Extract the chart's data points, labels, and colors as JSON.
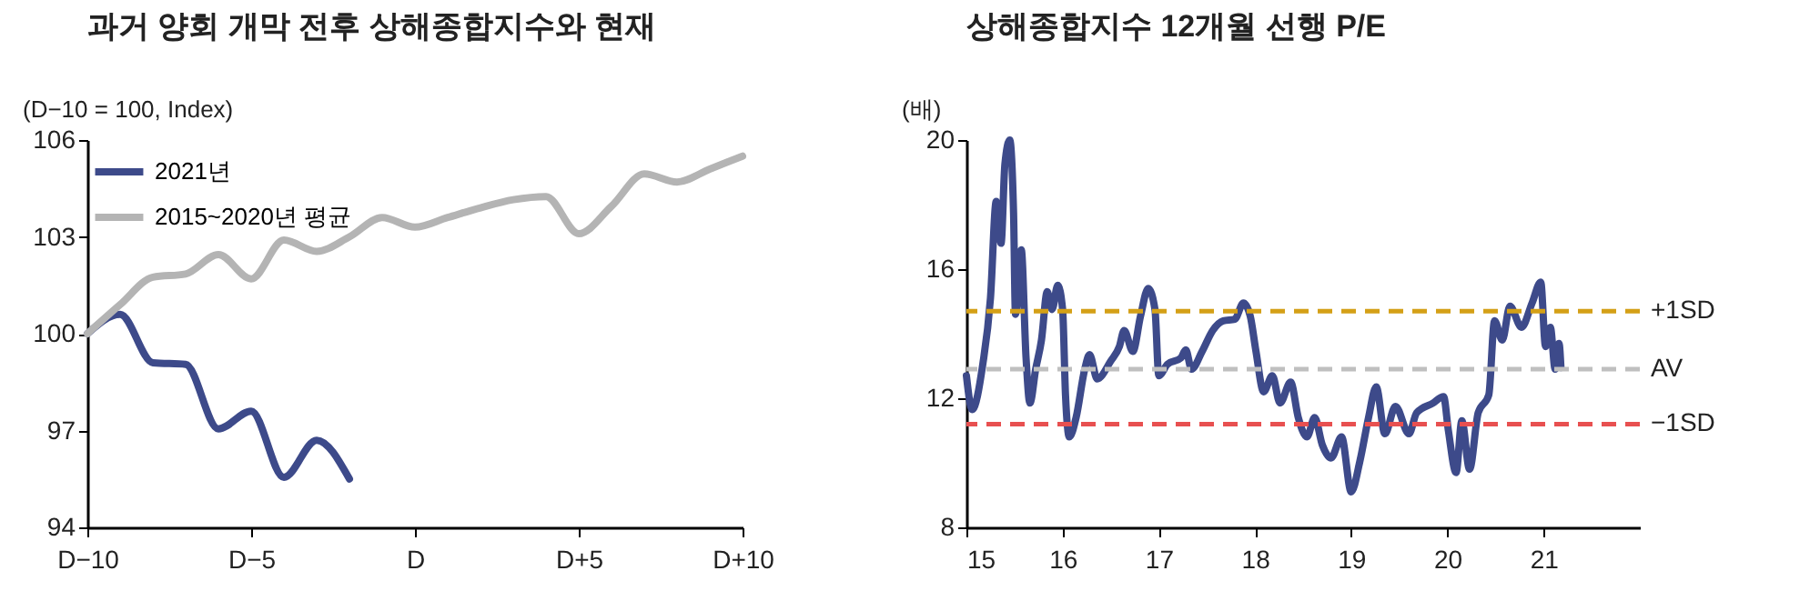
{
  "chart_data": [
    {
      "type": "line",
      "title": "과거 양회 개막 전후 상해종합지수와 현재",
      "ylabel": "(D−10 = 100, Index)",
      "categories": [
        "D−10",
        null,
        null,
        null,
        null,
        "D−5",
        null,
        null,
        null,
        null,
        "D",
        null,
        null,
        null,
        null,
        "D+5",
        null,
        null,
        null,
        null,
        "D+10"
      ],
      "ylim": [
        94,
        106
      ],
      "yticks": [
        94,
        97,
        100,
        103,
        106
      ],
      "grid": false,
      "legend": "top left",
      "marker": "none",
      "line_style": "solid",
      "series": [
        {
          "name": "2021년",
          "color": "#3d4a8a",
          "values": [
            100,
            100.6,
            99.1,
            99.05,
            97.05,
            97.6,
            95.55,
            96.7,
            95.5,
            null,
            null,
            null,
            null,
            null,
            null,
            null,
            null,
            null,
            null,
            null,
            null
          ]
        },
        {
          "name": "2015~2020년  평균",
          "color": "#b4b4b4",
          "values": [
            100,
            100.9,
            101.75,
            101.85,
            102.45,
            101.7,
            102.9,
            102.55,
            103.0,
            103.6,
            103.3,
            103.6,
            103.9,
            104.15,
            104.25,
            103.1,
            103.95,
            104.95,
            104.7,
            105.1,
            105.5
          ]
        }
      ]
    },
    {
      "type": "line",
      "title": "상해종합지수 12개월 선행 P/E",
      "ylabel": "(배)",
      "xlim": [
        15,
        22
      ],
      "xticks": [
        15,
        16,
        17,
        18,
        19,
        20,
        21
      ],
      "ylim": [
        8,
        20
      ],
      "yticks": [
        8,
        12,
        16,
        20
      ],
      "grid": false,
      "marker": "none",
      "line_style": "solid",
      "ref_lines": [
        {
          "axis": "y",
          "value": 14.7,
          "label": "+1SD",
          "color": "#d4a017",
          "line_style": "dashed"
        },
        {
          "axis": "y",
          "value": 12.9,
          "label": "AV",
          "color": "#bfbfbf",
          "line_style": "dashed"
        },
        {
          "axis": "y",
          "value": 11.2,
          "label": "−1SD",
          "color": "#e85050",
          "line_style": "dashed"
        }
      ],
      "series": [
        {
          "color": "#3d4a8a",
          "x": [
            15.0,
            15.06,
            15.17,
            15.25,
            15.31,
            15.36,
            15.4,
            15.45,
            15.49,
            15.51,
            15.57,
            15.62,
            15.66,
            15.72,
            15.78,
            15.84,
            15.89,
            15.95,
            16.0,
            16.03,
            16.07,
            16.14,
            16.23,
            16.28,
            16.36,
            16.5,
            16.59,
            16.64,
            16.73,
            16.81,
            16.89,
            16.96,
            17.0,
            17.09,
            17.23,
            17.28,
            17.34,
            17.45,
            17.56,
            17.67,
            17.79,
            17.88,
            17.95,
            18.01,
            18.09,
            18.18,
            18.26,
            18.37,
            18.45,
            18.54,
            18.62,
            18.7,
            18.79,
            18.9,
            19.0,
            19.09,
            19.18,
            19.26,
            19.35,
            19.46,
            19.6,
            19.68,
            19.85,
            19.96,
            20.01,
            20.09,
            20.15,
            20.23,
            20.32,
            20.43,
            20.49,
            20.57,
            20.65,
            20.77,
            20.88,
            20.97,
            21.02,
            21.07,
            21.12,
            21.16,
            21.18
          ],
          "values": [
            12.7,
            11.65,
            13.05,
            15.1,
            18.1,
            16.8,
            19.25,
            20,
            17.75,
            14.6,
            16.6,
            13.25,
            11.85,
            12.9,
            13.8,
            15.3,
            14.75,
            15.5,
            14.75,
            12.1,
            10.8,
            11.4,
            12.9,
            13.35,
            12.6,
            13.15,
            13.6,
            14.1,
            13.45,
            14.55,
            15.4,
            14.75,
            12.7,
            13.05,
            13.25,
            13.5,
            12.9,
            13.45,
            14.1,
            14.4,
            14.45,
            14.95,
            14.55,
            13.45,
            12.2,
            12.7,
            11.85,
            12.5,
            11.4,
            10.8,
            11.4,
            10.55,
            10.15,
            10.8,
            9.1,
            10.05,
            11.4,
            12.35,
            10.9,
            11.75,
            10.9,
            11.55,
            11.85,
            12.05,
            11.0,
            9.7,
            11.3,
            9.8,
            11.55,
            12.1,
            14.4,
            13.8,
            14.85,
            14.2,
            14.95,
            15.6,
            13.6,
            14.2,
            12.9,
            13.7,
            12.95
          ]
        }
      ]
    }
  ]
}
